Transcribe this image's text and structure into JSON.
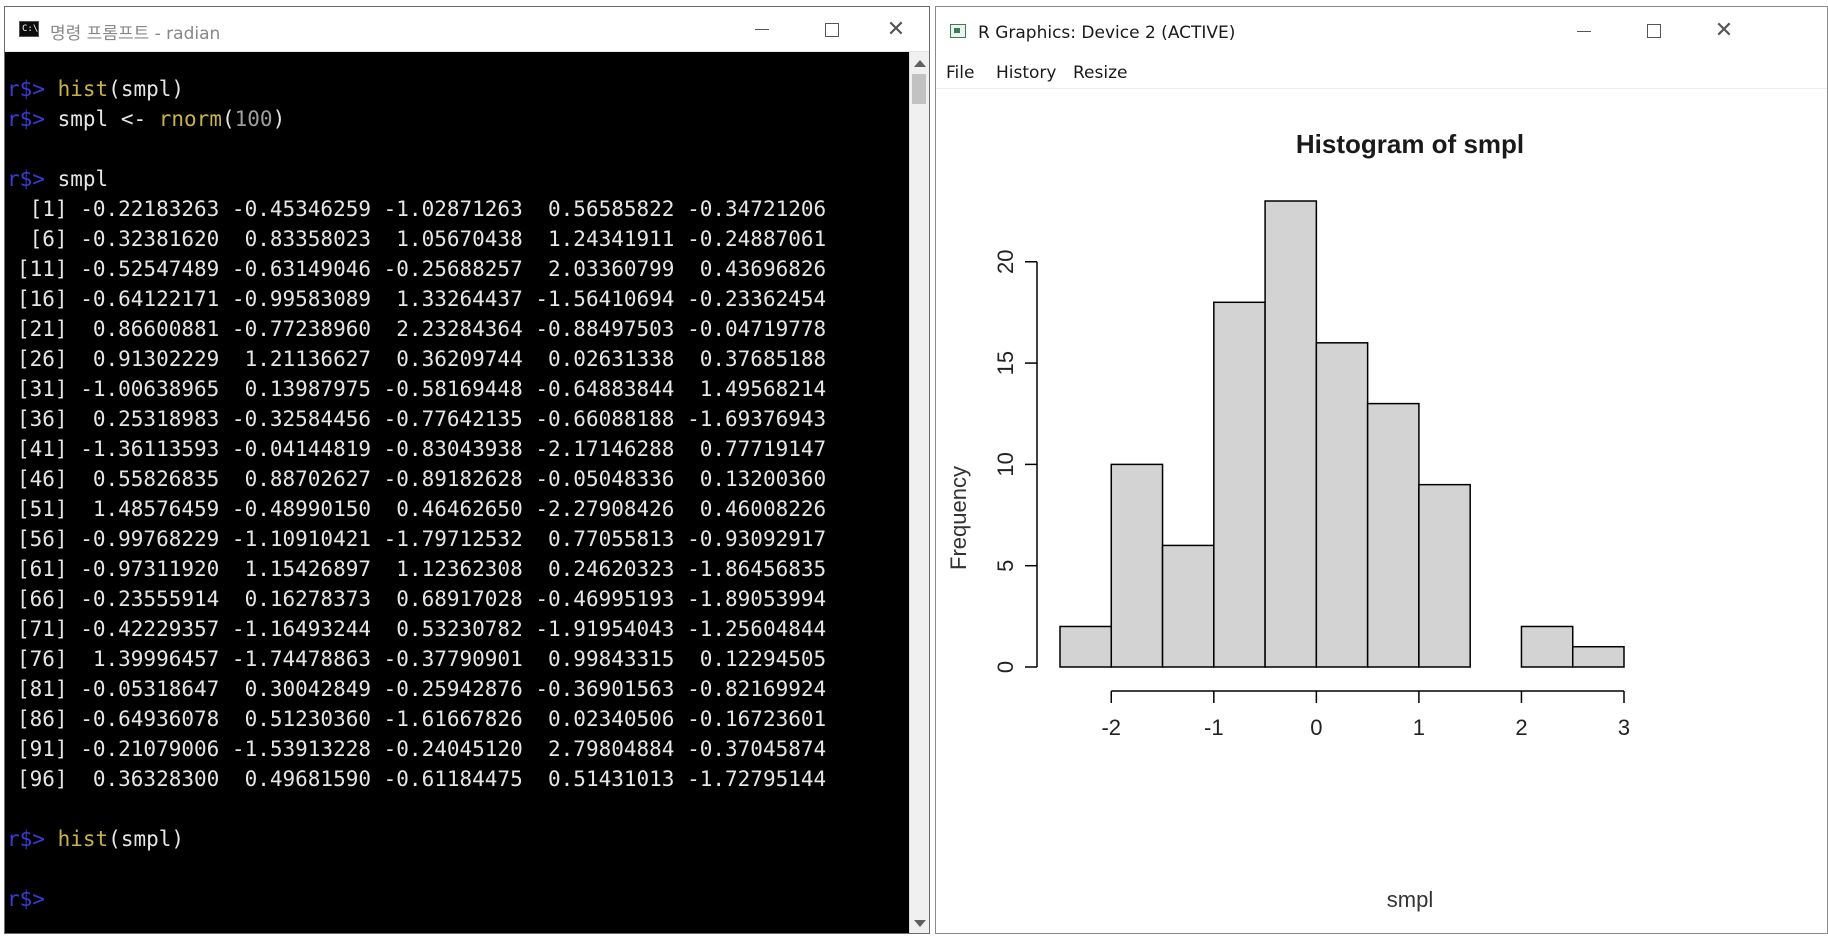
{
  "console": {
    "title": "명령 프롬프트 - radian",
    "icon_label": "C:\\",
    "prompt": "r$>",
    "lines": [
      {
        "type": "cmd",
        "fn": "hist",
        "rest": "(smpl)"
      },
      {
        "type": "assign",
        "lhs": "smpl ",
        "op": "<- ",
        "fn": "rnorm",
        "open": "(",
        "num": "100",
        "close": ")"
      },
      {
        "type": "blank"
      },
      {
        "type": "plain",
        "text": "smpl"
      },
      {
        "type": "out",
        "text": " [1] -0.22183263 -0.45346259 -1.02871263  0.56585822 -0.34721206"
      },
      {
        "type": "out",
        "text": " [6] -0.32381620  0.83358023  1.05670438  1.24341911 -0.24887061"
      },
      {
        "type": "out",
        "text": "[11] -0.52547489 -0.63149046 -0.25688257  2.03360799  0.43696826"
      },
      {
        "type": "out",
        "text": "[16] -0.64122171 -0.99583089  1.33264437 -1.56410694 -0.23362454"
      },
      {
        "type": "out",
        "text": "[21]  0.86600881 -0.77238960  2.23284364 -0.88497503 -0.04719778"
      },
      {
        "type": "out",
        "text": "[26]  0.91302229  1.21136627  0.36209744  0.02631338  0.37685188"
      },
      {
        "type": "out",
        "text": "[31] -1.00638965  0.13987975 -0.58169448 -0.64883844  1.49568214"
      },
      {
        "type": "out",
        "text": "[36]  0.25318983 -0.32584456 -0.77642135 -0.66088188 -1.69376943"
      },
      {
        "type": "out",
        "text": "[41] -1.36113593 -0.04144819 -0.83043938 -2.17146288  0.77719147"
      },
      {
        "type": "out",
        "text": "[46]  0.55826835  0.88702627 -0.89182628 -0.05048336  0.13200360"
      },
      {
        "type": "out",
        "text": "[51]  1.48576459 -0.48990150  0.46462650 -2.27908426  0.46008226"
      },
      {
        "type": "out",
        "text": "[56] -0.99768229 -1.10910421 -1.79712532  0.77055813 -0.93092917"
      },
      {
        "type": "out",
        "text": "[61] -0.97311920  1.15426897  1.12362308  0.24620323 -1.86456835"
      },
      {
        "type": "out",
        "text": "[66] -0.23555914  0.16278373  0.68917028 -0.46995193 -1.89053994"
      },
      {
        "type": "out",
        "text": "[71] -0.42229357 -1.16493244  0.53230782 -1.91954043 -1.25604844"
      },
      {
        "type": "out",
        "text": "[76]  1.39996457 -1.74478863 -0.37790901  0.99843315  0.12294505"
      },
      {
        "type": "out",
        "text": "[81] -0.05318647  0.30042849 -0.25942876 -0.36901563 -0.82169924"
      },
      {
        "type": "out",
        "text": "[86] -0.64936078  0.51230360 -1.61667826  0.02340506 -0.16723601"
      },
      {
        "type": "out",
        "text": "[91] -0.21079006 -1.53913228 -0.24045120  2.79804884 -0.37045874"
      },
      {
        "type": "out",
        "text": "[96]  0.36328300  0.49681590 -0.61184475  0.51431013 -1.72795144"
      },
      {
        "type": "blank"
      },
      {
        "type": "cmd",
        "fn": "hist",
        "rest": "(smpl)"
      },
      {
        "type": "blank"
      },
      {
        "type": "prompt"
      }
    ],
    "colors": {
      "prompt": "#3b3bd6",
      "function": "#c9b348",
      "number": "#9e9e9e",
      "text": "#e6e6e6",
      "background": "#000000"
    }
  },
  "graphics": {
    "title": "R Graphics: Device 2 (ACTIVE)",
    "menu": [
      "File",
      "History",
      "Resize"
    ]
  },
  "chart_data": {
    "type": "bar",
    "title": "Histogram of smpl",
    "xlabel": "smpl",
    "ylabel": "Frequency",
    "bins": [
      {
        "from": -2.5,
        "to": -2.0,
        "count": 2
      },
      {
        "from": -2.0,
        "to": -1.5,
        "count": 10
      },
      {
        "from": -1.5,
        "to": -1.0,
        "count": 6
      },
      {
        "from": -1.0,
        "to": -0.5,
        "count": 18
      },
      {
        "from": -0.5,
        "to": 0.0,
        "count": 23
      },
      {
        "from": 0.0,
        "to": 0.5,
        "count": 16
      },
      {
        "from": 0.5,
        "to": 1.0,
        "count": 13
      },
      {
        "from": 1.0,
        "to": 1.5,
        "count": 9
      },
      {
        "from": 1.5,
        "to": 2.0,
        "count": 0
      },
      {
        "from": 2.0,
        "to": 2.5,
        "count": 2
      },
      {
        "from": 2.5,
        "to": 3.0,
        "count": 1
      }
    ],
    "x_ticks": [
      -2,
      -1,
      0,
      1,
      2,
      3
    ],
    "x_tick_labels": [
      "-2",
      "-1",
      "0",
      "1",
      "2",
      "3"
    ],
    "y_ticks": [
      0,
      5,
      10,
      15,
      20
    ],
    "y_tick_labels": [
      "0",
      "5",
      "10",
      "15",
      "20"
    ],
    "xlim": [
      -2.5,
      3
    ],
    "ylim": [
      0,
      23
    ],
    "grid": false,
    "bar_color": "#d3d3d3",
    "edge_color": "#000000"
  }
}
